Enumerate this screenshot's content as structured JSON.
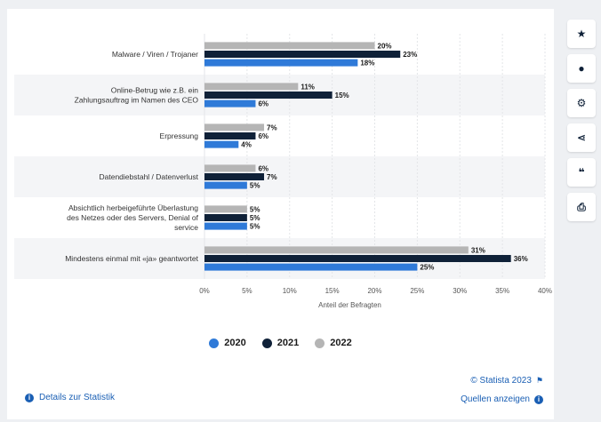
{
  "chart_data": {
    "type": "bar",
    "orientation": "horizontal",
    "categories": [
      "Malware / Viren / Trojaner",
      "Online-Betrug wie z.B. ein Zahlungsauftrag im Namen des CEO",
      "Erpressung",
      "Datendiebstahl / Datenverlust",
      "Absichtlich herbeigeführte Überlastung des Netzes oder des Servers, Denial of service",
      "Mindestens einmal mit «ja» geantwortet"
    ],
    "category_lines": [
      [
        "Malware / Viren / Trojaner"
      ],
      [
        "Online-Betrug wie z.B. ein",
        "Zahlungsauftrag im Namen des CEO"
      ],
      [
        "Erpressung"
      ],
      [
        "Datendiebstahl / Datenverlust"
      ],
      [
        "Absichtlich herbeigeführte Überlastung",
        "des Netzes oder des Servers, Denial of",
        "service"
      ],
      [
        "Mindestens einmal mit «ja» geantwortet"
      ]
    ],
    "series": [
      {
        "name": "2022",
        "color": "#b5b5b5",
        "values": [
          20,
          11,
          7,
          6,
          5,
          31
        ]
      },
      {
        "name": "2021",
        "color": "#0f2138",
        "values": [
          23,
          15,
          6,
          7,
          5,
          36
        ]
      },
      {
        "name": "2020",
        "color": "#2f7ad8",
        "values": [
          18,
          6,
          4,
          5,
          5,
          25
        ]
      }
    ],
    "legend_order": [
      "2020",
      "2021",
      "2022"
    ],
    "xlim": [
      0,
      40
    ],
    "xticks": [
      "0%",
      "5%",
      "10%",
      "15%",
      "20%",
      "25%",
      "30%",
      "35%",
      "40%"
    ],
    "xlabel": "Anteil der Befragten",
    "value_suffix": "%",
    "grid": true
  },
  "footer": {
    "details_label": "Details zur Statistik",
    "copyright": "© Statista 2023",
    "sources_label": "Quellen anzeigen"
  },
  "toolbar": {
    "icons": [
      "star-icon",
      "bell-icon",
      "gear-icon",
      "share-icon",
      "quote-icon",
      "print-icon"
    ]
  }
}
